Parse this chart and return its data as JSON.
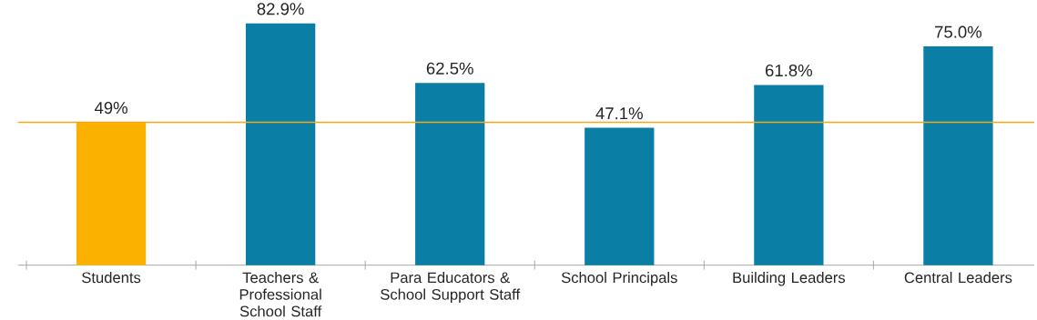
{
  "chart_data": {
    "type": "bar",
    "categories": [
      "Students",
      "Teachers & Professional School Staff",
      "Para Educators & School Support Staff",
      "School Principals",
      "Building Leaders",
      "Central Leaders"
    ],
    "values": [
      49,
      82.9,
      62.5,
      47.1,
      61.8,
      75.0
    ],
    "colors": [
      "#fbb100",
      "#0a7ea4",
      "#0a7ea4",
      "#0a7ea4",
      "#0a7ea4",
      "#0a7ea4"
    ],
    "value_labels": [
      "49%",
      "82.9%",
      "62.5%",
      "47.1%",
      "61.8%",
      "75.0%"
    ],
    "ref_lines": [
      {
        "axis": "y",
        "value": 49,
        "color": "#f5a81c"
      }
    ],
    "tick_labels": "x"
  }
}
